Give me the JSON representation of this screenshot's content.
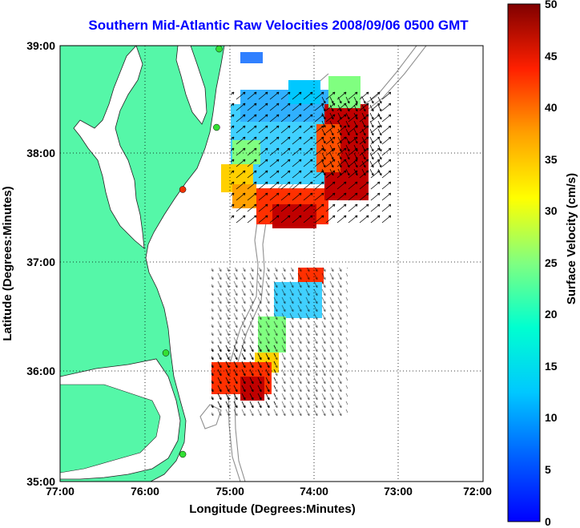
{
  "title": "Southern Mid-Atlantic Raw Velocities 2008/09/06 0500 GMT",
  "x_axis": {
    "label": "Longitude (Degrees:Minutes)",
    "ticks": [
      "77:00",
      "76:00",
      "75:00",
      "74:00",
      "73:00",
      "72:00"
    ]
  },
  "y_axis": {
    "label": "Latitude (Degrees:Minutes)",
    "ticks": [
      "39:00",
      "38:00",
      "37:00",
      "36:00",
      "35:00"
    ]
  },
  "colorbar": {
    "label": "Surface Velocity (cm/s)",
    "ticks": [
      "50",
      "45",
      "40",
      "35",
      "30",
      "25",
      "20",
      "15",
      "10",
      "5",
      "0"
    ],
    "range": [
      0,
      50
    ],
    "colormap": "jet"
  },
  "colors": {
    "land": "#55f7a8",
    "water": "#ffffff",
    "bathymetry": "#8f8f8f",
    "title": "#0000ff"
  },
  "map_extent": {
    "lon": [
      -77,
      -72
    ],
    "lat": [
      35,
      39
    ]
  },
  "stations": [
    {
      "lon": -75.12,
      "lat": 38.97,
      "color": "#33e033"
    },
    {
      "lon": -75.15,
      "lat": 38.25,
      "color": "#33e033"
    },
    {
      "lon": -75.55,
      "lat": 37.68,
      "color": "#ee3300"
    },
    {
      "lon": -75.75,
      "lat": 36.18,
      "color": "#33e033"
    },
    {
      "lon": -75.55,
      "lat": 35.25,
      "color": "#33e033"
    }
  ]
}
